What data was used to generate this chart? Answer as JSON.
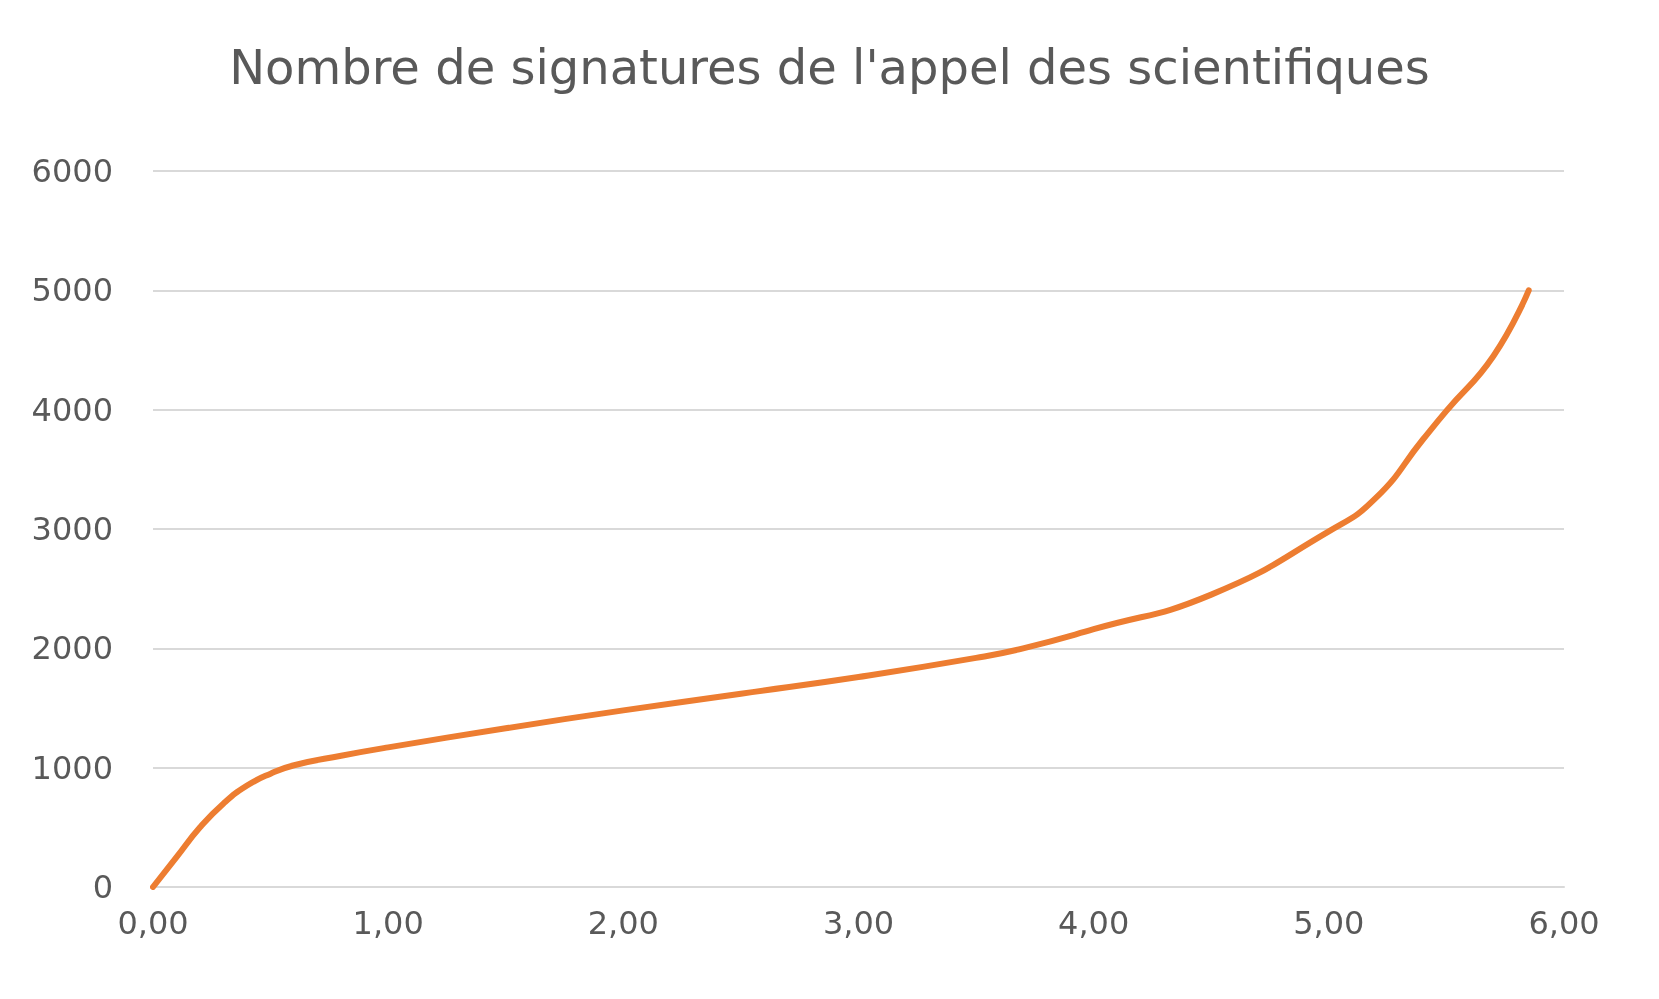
{
  "chart_data": {
    "type": "line",
    "title": "Nombre de signatures de l'appel des scientifiques",
    "x": [
      0,
      0.1,
      0.2,
      0.3,
      0.4,
      0.5,
      0.6,
      0.8,
      1.0,
      1.5,
      2.0,
      2.5,
      3.0,
      3.5,
      3.7,
      4.0,
      4.5,
      5.0,
      5.2,
      5.4,
      5.5,
      5.7,
      5.85
    ],
    "series": [
      {
        "color": "#ed7d31",
        "values": [
          0,
          250,
          500,
          700,
          850,
          950,
          1020,
          1100,
          1170,
          1330,
          1480,
          1620,
          1760,
          1920,
          2000,
          2160,
          2450,
          2980,
          3260,
          3750,
          3990,
          4450,
          5000
        ]
      }
    ],
    "xlim": [
      0,
      6
    ],
    "xticks": [
      {
        "value": 0,
        "label": "0,00"
      },
      {
        "value": 1,
        "label": "1,00"
      },
      {
        "value": 2,
        "label": "2,00"
      },
      {
        "value": 3,
        "label": "3,00"
      },
      {
        "value": 4,
        "label": "4,00"
      },
      {
        "value": 5,
        "label": "5,00"
      },
      {
        "value": 6,
        "label": "6,00"
      }
    ],
    "ylim": [
      0,
      6000
    ],
    "yticks": [
      0,
      1000,
      2000,
      3000,
      4000,
      5000,
      6000
    ],
    "grid": "y",
    "marker": "none",
    "line_style": "solid"
  }
}
